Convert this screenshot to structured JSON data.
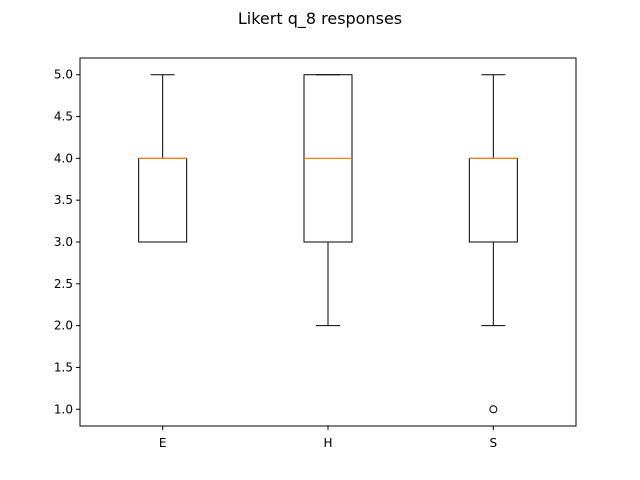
{
  "chart_data": {
    "type": "box",
    "title": "Likert q_8 responses",
    "xlabel": "",
    "ylabel": "",
    "categories": [
      "E",
      "H",
      "S"
    ],
    "ylim": [
      0.8,
      5.2
    ],
    "yticks": [
      "1.0",
      "1.5",
      "2.0",
      "2.5",
      "3.0",
      "3.5",
      "4.0",
      "4.5",
      "5.0"
    ],
    "grid": false,
    "boxes": [
      {
        "label": "E",
        "whisker_low": 3.0,
        "q1": 3.0,
        "median": 4.0,
        "q3": 4.0,
        "whisker_high": 5.0,
        "outliers": []
      },
      {
        "label": "H",
        "whisker_low": 2.0,
        "q1": 3.0,
        "median": 4.0,
        "q3": 5.0,
        "whisker_high": 5.0,
        "outliers": []
      },
      {
        "label": "S",
        "whisker_low": 2.0,
        "q1": 3.0,
        "median": 4.0,
        "q3": 4.0,
        "whisker_high": 5.0,
        "outliers": [
          1.0
        ]
      }
    ],
    "colors": {
      "box": "#000000",
      "median": "#ff7f0e"
    }
  }
}
